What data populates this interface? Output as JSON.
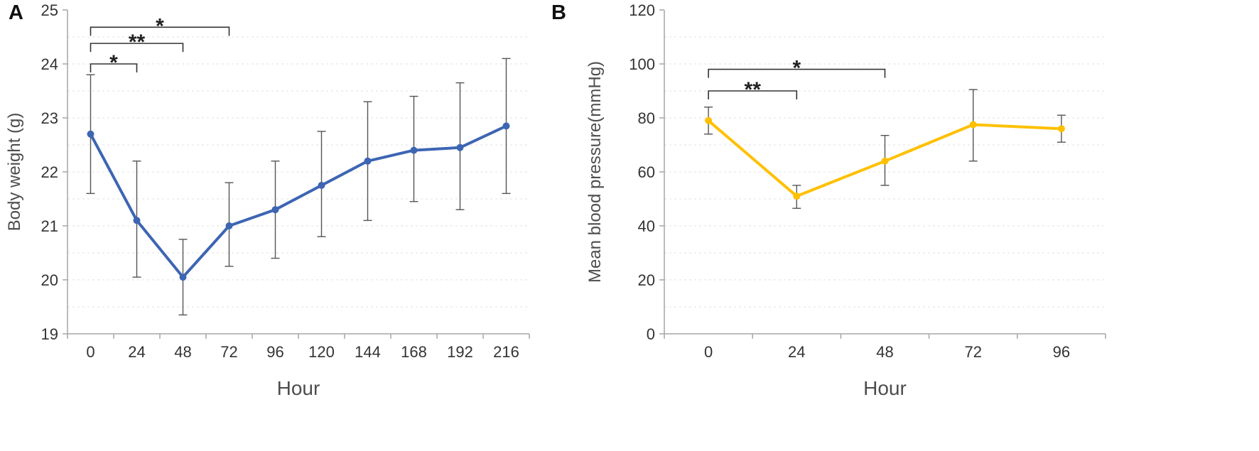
{
  "style": {
    "background": "#ffffff",
    "axis_color": "#a6a6a6",
    "grid_color": "#e2e2e2",
    "error_bar_color": "#555555",
    "tick_text_color": "#333333",
    "axis_title_color": "#4d4d4d",
    "bracket_color": "#333333",
    "sig_label_color": "#222222"
  },
  "chart_data": [
    {
      "panel_label": "A",
      "type": "line",
      "title": "",
      "xlabel": "Hour",
      "ylabel": "Body weight (g)",
      "categories": [
        "0",
        "24",
        "48",
        "72",
        "96",
        "120",
        "144",
        "168",
        "192",
        "216"
      ],
      "series": [
        {
          "name": "body-weight",
          "color": "#3D65B3",
          "values": [
            22.7,
            21.1,
            20.05,
            21.0,
            21.3,
            21.75,
            22.2,
            22.4,
            22.45,
            22.85
          ],
          "error_upper": [
            23.8,
            22.2,
            20.75,
            21.8,
            22.2,
            22.75,
            23.3,
            23.4,
            23.65,
            24.1
          ],
          "error_lower": [
            21.6,
            20.05,
            19.35,
            20.25,
            20.4,
            20.8,
            21.1,
            21.45,
            21.3,
            21.6
          ]
        }
      ],
      "ylim": [
        19,
        25
      ],
      "ytick_step": 1,
      "minor_grid_step": 0.5,
      "grid": true,
      "legend": "none",
      "significance": [
        {
          "from_index": 0,
          "to_index": 1,
          "label": "*",
          "y_value": 24.0
        },
        {
          "from_index": 0,
          "to_index": 2,
          "label": "**",
          "y_value": 24.38
        },
        {
          "from_index": 0,
          "to_index": 3,
          "label": "*",
          "y_value": 24.68
        }
      ]
    },
    {
      "panel_label": "B",
      "type": "line",
      "title": "",
      "xlabel": "Hour",
      "ylabel": "Mean blood pressure(mmHg)",
      "categories": [
        "0",
        "24",
        "48",
        "72",
        "96"
      ],
      "series": [
        {
          "name": "mean-blood-pressure",
          "color": "#FFC000",
          "values": [
            79,
            51,
            64,
            77.5,
            76
          ],
          "error_upper": [
            84,
            55,
            73.5,
            90.5,
            81
          ],
          "error_lower": [
            74,
            46.5,
            55,
            64,
            71
          ]
        }
      ],
      "ylim": [
        0,
        120
      ],
      "ytick_step": 20,
      "minor_grid_step": 10,
      "grid": true,
      "legend": "none",
      "significance": [
        {
          "from_index": 0,
          "to_index": 1,
          "label": "**",
          "y_value": 90
        },
        {
          "from_index": 0,
          "to_index": 2,
          "label": "*",
          "y_value": 98
        }
      ]
    }
  ]
}
